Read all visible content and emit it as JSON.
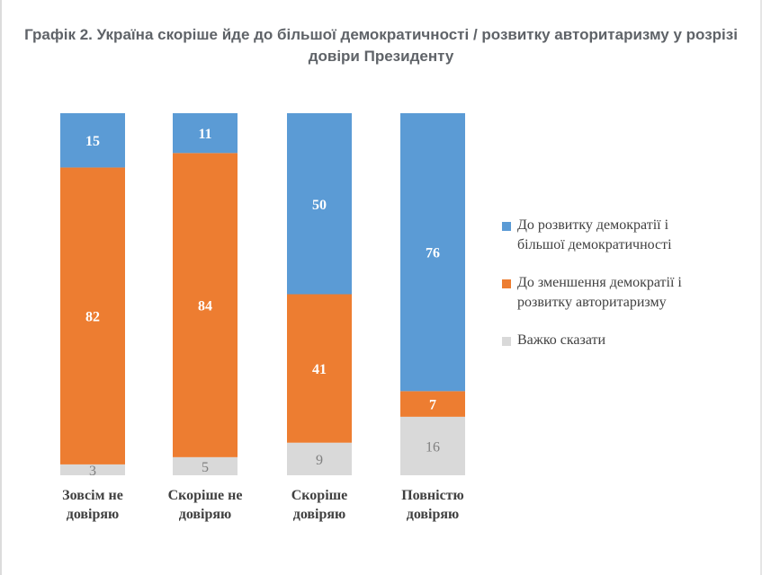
{
  "title": "Графік 2. Україна скоріше йде до більшої демократичності / розвитку авторитаризму у розрізі довіри Президенту",
  "chart_data": {
    "type": "bar",
    "stacked": true,
    "normalized_percent": true,
    "categories": [
      "Зовсім не\nдовіряю",
      "Скоріше не\nдовіряю",
      "Скоріше\nдовіряю",
      "Повністю\nдовіряю"
    ],
    "series": [
      {
        "name": "Важко сказати",
        "color": "#d9d9d9",
        "label_color": "#7f7f7f",
        "values": [
          3,
          5,
          9,
          16
        ]
      },
      {
        "name": "До зменшення демократії і\nрозвитку авторитаризму",
        "color": "#ed7d31",
        "label_color": "#ffffff",
        "values": [
          82,
          84,
          41,
          7
        ]
      },
      {
        "name": "До розвитку демократії і\nбільшої демократичності",
        "color": "#5b9bd5",
        "label_color": "#ffffff",
        "values": [
          15,
          11,
          50,
          76
        ]
      }
    ],
    "legend_order": [
      2,
      1,
      0
    ],
    "legend_position": "right",
    "ylim": [
      0,
      100
    ],
    "grid": false,
    "xlabel": "",
    "ylabel": ""
  }
}
